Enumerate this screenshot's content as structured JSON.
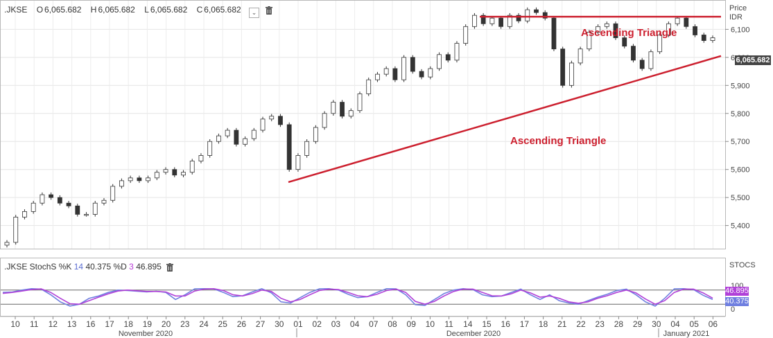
{
  "header": {
    "symbol": ".JKSE",
    "open_label": "O",
    "open": "6,065.682",
    "high_label": "H",
    "high": "6,065.682",
    "low_label": "L",
    "low": "6,065.682",
    "close_label": "C",
    "close": "6,065.682",
    "collapse_icon": "chevron-down-icon",
    "delete_icon": "trash-icon"
  },
  "price_axis": {
    "title_line1": "Price",
    "title_line2": "IDR",
    "ticks": [
      "6,100",
      "6,000",
      "5,900",
      "5,800",
      "5,700",
      "5,600",
      "5,500",
      "5,400"
    ],
    "last_price": "6,065.682"
  },
  "stoch_header": {
    "label": ".JKSE StochS %K",
    "k_period": "14",
    "k_value": "40.375",
    "d_label": "%D",
    "d_period": "3",
    "d_value": "46.895",
    "delete_icon": "trash-icon"
  },
  "stoch_axis": {
    "title": "STOCS",
    "ticks": [
      "100",
      "0"
    ],
    "k_tag": "40.375",
    "d_tag": "46.895"
  },
  "annotations": {
    "top_label": "Ascending Triangle",
    "bottom_label": "Ascending Triangle"
  },
  "colors": {
    "trendline": "#cc1f2e",
    "annotation_text": "#cc1f2e",
    "k_line": "#6f7fe0",
    "d_line": "#b040d8",
    "candle_up": "#ffffff",
    "candle_down": "#333333"
  },
  "chart_data": [
    {
      "type": "candlestick",
      "title": ".JKSE",
      "ylabel": "Price IDR",
      "ylim": [
        5320,
        6180
      ],
      "grid": true,
      "x_tick_labels": [
        "10",
        "11",
        "12",
        "13",
        "16",
        "17",
        "18",
        "19",
        "20",
        "23",
        "24",
        "25",
        "26",
        "27",
        "30",
        "01",
        "02",
        "03",
        "04",
        "07",
        "08",
        "09",
        "10",
        "11",
        "14",
        "15",
        "16",
        "17",
        "18",
        "21",
        "22",
        "23",
        "28",
        "29",
        "30",
        "04",
        "05",
        "06"
      ],
      "month_labels": [
        "November 2020",
        "December 2020",
        "January 2021"
      ],
      "series": [
        {
          "values": [
            5340,
            5430,
            5450,
            5480,
            5510,
            5500,
            5480,
            5470,
            5440,
            5440,
            5480,
            5490,
            5540,
            5560,
            5570,
            5560,
            5570,
            5590,
            5600,
            5580,
            5590,
            5630,
            5650,
            5700,
            5720,
            5740,
            5690,
            5710,
            5740,
            5780,
            5790,
            5760,
            5600,
            5650,
            5700,
            5750,
            5800,
            5840,
            5790,
            5810,
            5870,
            5920,
            5940,
            5960,
            5920,
            6000,
            5950,
            5930,
            5960,
            6010,
            5990,
            6050,
            6110,
            6150,
            6120,
            6140,
            6110,
            6150,
            6130,
            6170,
            6160,
            6140,
            6030,
            5900,
            5980,
            6030,
            6090,
            6110,
            6120,
            6070,
            6040,
            5990,
            5960,
            6020,
            6080,
            6120,
            6140,
            6110,
            6080,
            6060,
            6070
          ]
        }
      ],
      "trendlines": [
        {
          "label": "Ascending Triangle",
          "from": [
            "30",
            5555
          ],
          "to": [
            "06",
            6005
          ]
        },
        {
          "label": "Ascending Triangle",
          "from": [
            "16",
            6145
          ],
          "to": [
            "06",
            6145
          ]
        }
      ]
    },
    {
      "type": "line",
      "title": ".JKSE StochS %K 14 %D 3",
      "ylim": [
        0,
        100
      ],
      "series": [
        {
          "name": "%K",
          "values": [
            70,
            72,
            80,
            86,
            84,
            60,
            30,
            12,
            20,
            45,
            55,
            70,
            80,
            78,
            75,
            72,
            75,
            70,
            40,
            60,
            85,
            86,
            85,
            70,
            52,
            56,
            72,
            86,
            68,
            30,
            25,
            48,
            70,
            85,
            86,
            80,
            62,
            48,
            52,
            70,
            86,
            85,
            60,
            18,
            15,
            40,
            65,
            80,
            86,
            82,
            60,
            52,
            55,
            70,
            84,
            60,
            40,
            60,
            35,
            25,
            20,
            35,
            50,
            62,
            78,
            84,
            60,
            30,
            12,
            45,
            85,
            86,
            82,
            58,
            40
          ]
        },
        {
          "name": "%D",
          "values": [
            66,
            70,
            76,
            82,
            85,
            70,
            45,
            22,
            20,
            35,
            50,
            64,
            76,
            80,
            77,
            74,
            74,
            72,
            55,
            55,
            76,
            84,
            86,
            78,
            60,
            55,
            65,
            80,
            74,
            45,
            30,
            40,
            60,
            78,
            84,
            82,
            70,
            56,
            52,
            62,
            78,
            84,
            70,
            32,
            20,
            32,
            55,
            74,
            84,
            84,
            70,
            56,
            55,
            64,
            80,
            68,
            50,
            55,
            45,
            30,
            24,
            30,
            45,
            56,
            70,
            80,
            68,
            42,
            20,
            35,
            70,
            84,
            84,
            68,
            46
          ]
        }
      ]
    }
  ]
}
